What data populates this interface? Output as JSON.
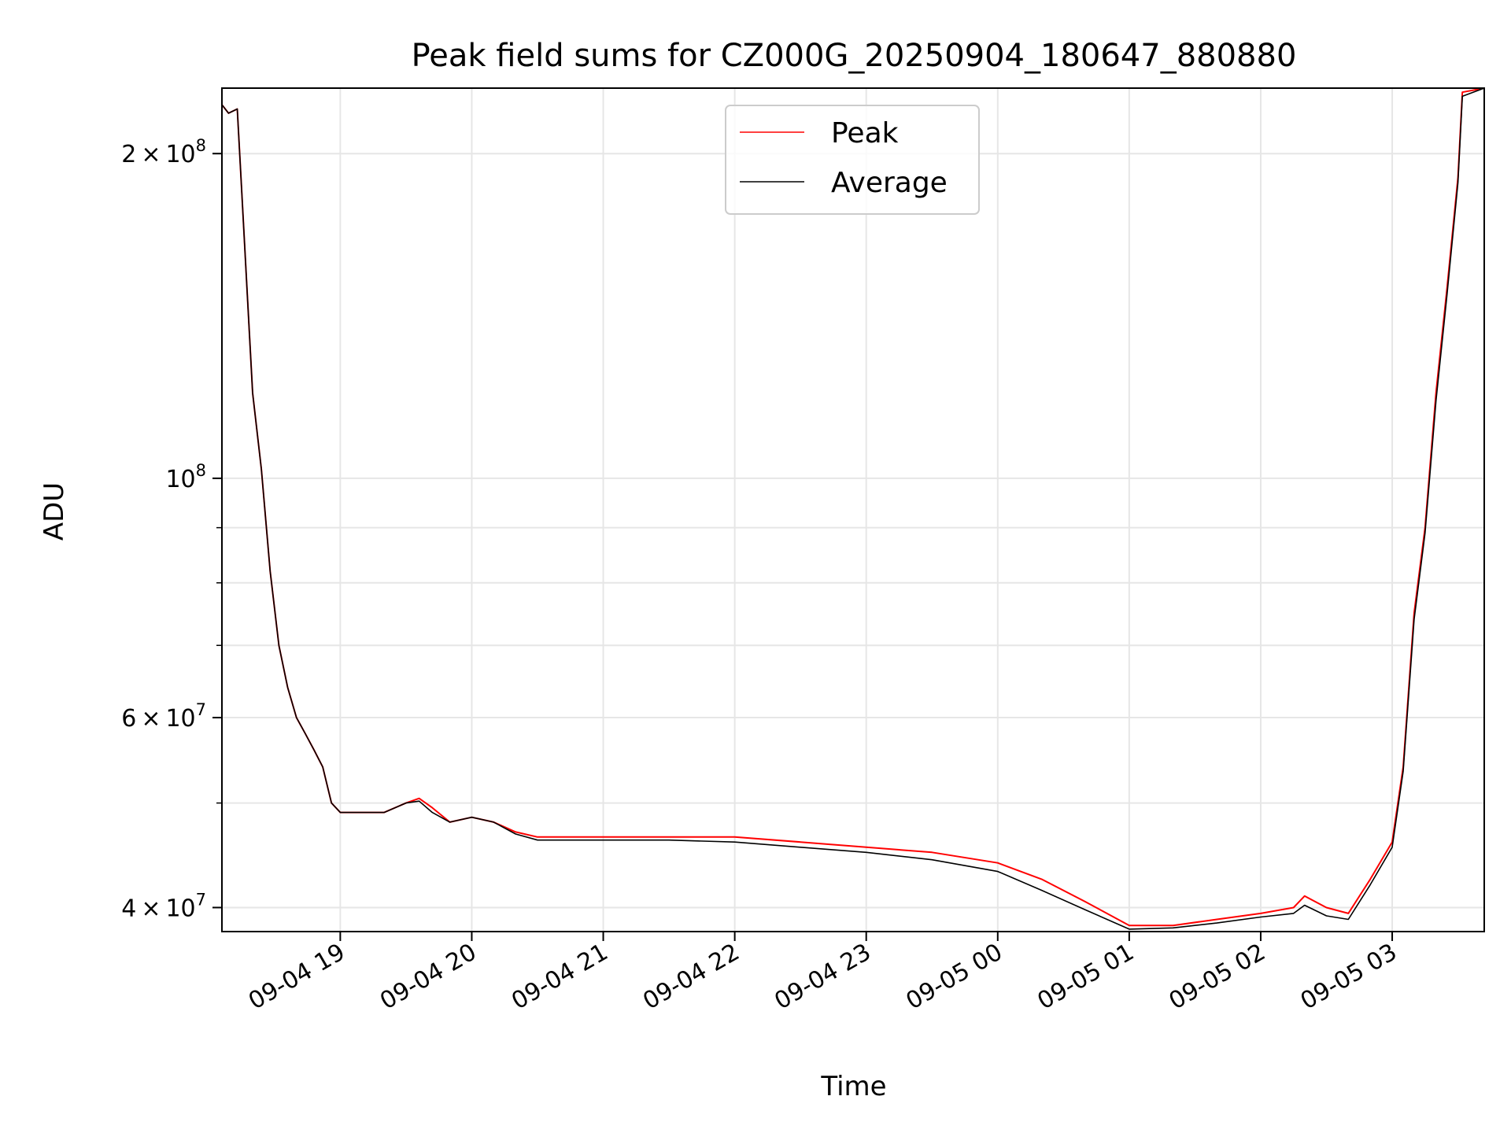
{
  "chart_data": {
    "type": "line",
    "title": "Peak field sums for CZ000G_20250904_180647_880880",
    "xlabel": "Time",
    "ylabel": "ADU",
    "y_scale": "log",
    "ylim": [
      38000000,
      230000000
    ],
    "xlim": [
      "2025-09-04 18:06",
      "2025-09-05 03:42"
    ],
    "grid": true,
    "legend_position": "upper center",
    "x_ticks": [
      {
        "t": "2025-09-04 19:00",
        "label": "09-04 19"
      },
      {
        "t": "2025-09-04 20:00",
        "label": "09-04 20"
      },
      {
        "t": "2025-09-04 21:00",
        "label": "09-04 21"
      },
      {
        "t": "2025-09-04 22:00",
        "label": "09-04 22"
      },
      {
        "t": "2025-09-04 23:00",
        "label": "09-04 23"
      },
      {
        "t": "2025-09-05 00:00",
        "label": "09-05 00"
      },
      {
        "t": "2025-09-05 01:00",
        "label": "09-05 01"
      },
      {
        "t": "2025-09-05 02:00",
        "label": "09-05 02"
      },
      {
        "t": "2025-09-05 03:00",
        "label": "09-05 03"
      }
    ],
    "y_ticks": [
      {
        "v": 40000000,
        "base": "4",
        "exp": "7"
      },
      {
        "v": 60000000,
        "base": "6",
        "exp": "7"
      },
      {
        "v": 100000000,
        "base": "",
        "exp": "8"
      },
      {
        "v": 200000000,
        "base": "2",
        "exp": "8"
      }
    ],
    "y_minor_ticks": [
      50000000,
      70000000,
      80000000,
      90000000
    ],
    "series": [
      {
        "name": "Peak",
        "color": "#ff0000",
        "x": [
          "2025-09-04 18:06",
          "2025-09-04 18:09",
          "2025-09-04 18:13",
          "2025-09-04 18:16",
          "2025-09-04 18:20",
          "2025-09-04 18:24",
          "2025-09-04 18:28",
          "2025-09-04 18:32",
          "2025-09-04 18:36",
          "2025-09-04 18:40",
          "2025-09-04 18:44",
          "2025-09-04 18:48",
          "2025-09-04 18:52",
          "2025-09-04 18:56",
          "2025-09-04 19:00",
          "2025-09-04 19:06",
          "2025-09-04 19:10",
          "2025-09-04 19:20",
          "2025-09-04 19:30",
          "2025-09-04 19:36",
          "2025-09-04 19:42",
          "2025-09-04 19:50",
          "2025-09-04 20:00",
          "2025-09-04 20:10",
          "2025-09-04 20:20",
          "2025-09-04 20:30",
          "2025-09-04 20:40",
          "2025-09-04 21:00",
          "2025-09-04 21:30",
          "2025-09-04 22:00",
          "2025-09-04 22:30",
          "2025-09-04 23:00",
          "2025-09-04 23:30",
          "2025-09-05 00:00",
          "2025-09-05 00:20",
          "2025-09-05 00:40",
          "2025-09-05 01:00",
          "2025-09-05 01:20",
          "2025-09-05 01:40",
          "2025-09-05 02:00",
          "2025-09-05 02:15",
          "2025-09-05 02:20",
          "2025-09-05 02:30",
          "2025-09-05 02:40",
          "2025-09-05 02:50",
          "2025-09-05 03:00",
          "2025-09-05 03:05",
          "2025-09-05 03:10",
          "2025-09-05 03:15",
          "2025-09-05 03:20",
          "2025-09-05 03:25",
          "2025-09-05 03:30",
          "2025-09-05 03:32",
          "2025-09-05 03:42"
        ],
        "values": [
          222000000,
          218000000,
          220000000,
          170000000,
          120000000,
          102000000,
          82000000,
          70000000,
          64000000,
          60000000,
          58000000,
          56000000,
          54000000,
          50000000,
          49000000,
          49000000,
          49000000,
          49000000,
          50000000,
          50500000,
          49500000,
          48000000,
          48500000,
          48000000,
          47000000,
          46500000,
          46500000,
          46500000,
          46500000,
          46500000,
          46000000,
          45500000,
          45000000,
          44000000,
          42500000,
          40500000,
          38500000,
          38500000,
          39000000,
          39500000,
          40000000,
          41000000,
          40000000,
          39500000,
          42500000,
          46000000,
          54000000,
          75000000,
          90000000,
          120000000,
          150000000,
          190000000,
          228000000,
          230000000
        ]
      },
      {
        "name": "Average",
        "color": "#000000",
        "x": [
          "2025-09-04 18:06",
          "2025-09-04 18:09",
          "2025-09-04 18:13",
          "2025-09-04 18:16",
          "2025-09-04 18:20",
          "2025-09-04 18:24",
          "2025-09-04 18:28",
          "2025-09-04 18:32",
          "2025-09-04 18:36",
          "2025-09-04 18:40",
          "2025-09-04 18:44",
          "2025-09-04 18:48",
          "2025-09-04 18:52",
          "2025-09-04 18:56",
          "2025-09-04 19:00",
          "2025-09-04 19:06",
          "2025-09-04 19:10",
          "2025-09-04 19:20",
          "2025-09-04 19:30",
          "2025-09-04 19:36",
          "2025-09-04 19:42",
          "2025-09-04 19:50",
          "2025-09-04 20:00",
          "2025-09-04 20:10",
          "2025-09-04 20:20",
          "2025-09-04 20:30",
          "2025-09-04 20:40",
          "2025-09-04 21:00",
          "2025-09-04 21:30",
          "2025-09-04 22:00",
          "2025-09-04 22:30",
          "2025-09-04 23:00",
          "2025-09-04 23:30",
          "2025-09-05 00:00",
          "2025-09-05 00:20",
          "2025-09-05 00:40",
          "2025-09-05 01:00",
          "2025-09-05 01:20",
          "2025-09-05 01:40",
          "2025-09-05 02:00",
          "2025-09-05 02:15",
          "2025-09-05 02:20",
          "2025-09-05 02:30",
          "2025-09-05 02:40",
          "2025-09-05 02:50",
          "2025-09-05 03:00",
          "2025-09-05 03:05",
          "2025-09-05 03:10",
          "2025-09-05 03:15",
          "2025-09-05 03:20",
          "2025-09-05 03:25",
          "2025-09-05 03:30",
          "2025-09-05 03:32",
          "2025-09-05 03:42"
        ],
        "values": [
          222000000,
          218000000,
          220000000,
          170000000,
          120000000,
          102000000,
          82000000,
          70000000,
          64000000,
          60000000,
          58000000,
          56000000,
          54000000,
          50000000,
          49000000,
          49000000,
          49000000,
          49000000,
          50000000,
          50200000,
          49000000,
          48000000,
          48500000,
          48000000,
          46800000,
          46200000,
          46200000,
          46200000,
          46200000,
          46000000,
          45500000,
          45000000,
          44300000,
          43200000,
          41500000,
          39800000,
          38200000,
          38300000,
          38700000,
          39200000,
          39500000,
          40200000,
          39300000,
          39000000,
          42000000,
          45500000,
          53500000,
          74000000,
          89000000,
          118000000,
          148000000,
          188000000,
          226000000,
          230000000
        ]
      }
    ]
  }
}
